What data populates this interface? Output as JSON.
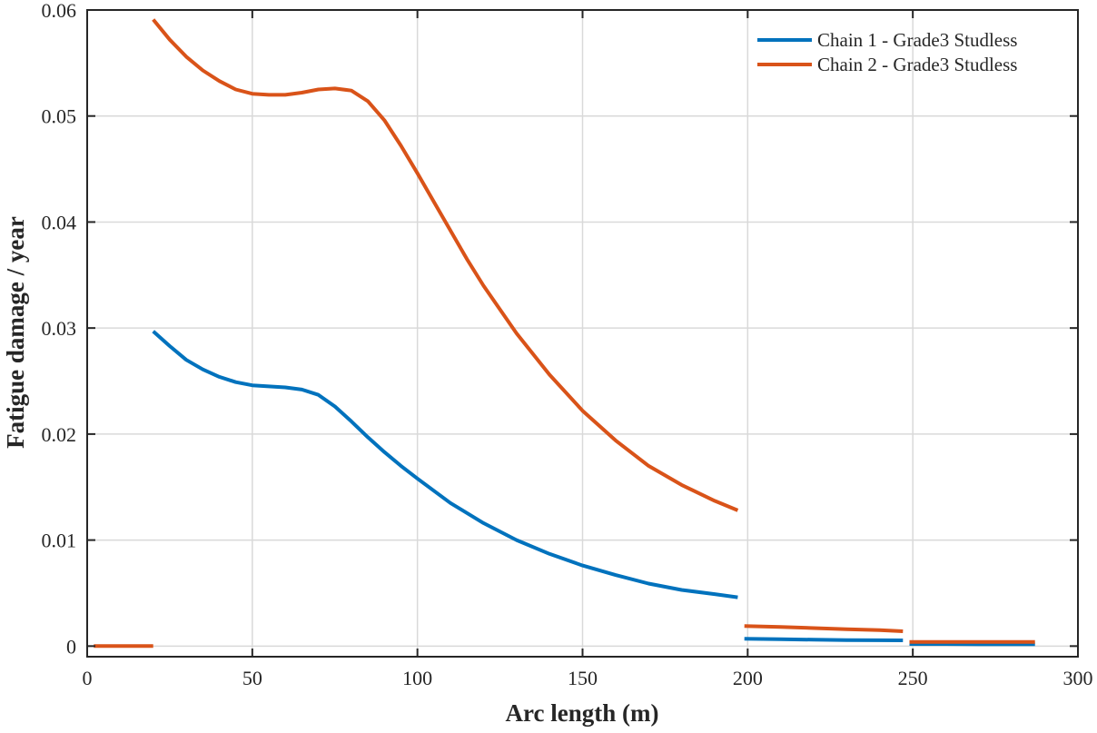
{
  "chart_data": {
    "type": "line",
    "title": "",
    "xlabel": "Arc length (m)",
    "ylabel": "Fatigue damage / year",
    "xlim": [
      0,
      300
    ],
    "ylim": [
      -0.001,
      0.06
    ],
    "grid": true,
    "legend_position": "top-right",
    "x_ticks": [
      0,
      50,
      100,
      150,
      200,
      250,
      300
    ],
    "x_tick_labels": [
      "0",
      "50",
      "100",
      "150",
      "200",
      "250",
      "300"
    ],
    "y_ticks": [
      0,
      0.01,
      0.02,
      0.03,
      0.04,
      0.05,
      0.06
    ],
    "y_tick_labels": [
      "0",
      "0.01",
      "0.02",
      "0.03",
      "0.04",
      "0.05",
      "0.06"
    ],
    "series": [
      {
        "name": "Chain 1 - Grade3 Studless",
        "color": "#0072BD",
        "segments": [
          [
            [
              20,
              0.0297
            ],
            [
              25,
              0.0283
            ],
            [
              30,
              0.027
            ],
            [
              35,
              0.0261
            ],
            [
              40,
              0.0254
            ],
            [
              45,
              0.0249
            ],
            [
              50,
              0.0246
            ],
            [
              55,
              0.0245
            ],
            [
              60,
              0.0244
            ],
            [
              65,
              0.0242
            ],
            [
              70,
              0.0237
            ],
            [
              75,
              0.0226
            ],
            [
              80,
              0.0212
            ],
            [
              85,
              0.0197
            ],
            [
              90,
              0.0183
            ],
            [
              95,
              0.017
            ],
            [
              100,
              0.0158
            ],
            [
              110,
              0.0135
            ],
            [
              120,
              0.0116
            ],
            [
              130,
              0.01
            ],
            [
              140,
              0.0087
            ],
            [
              150,
              0.0076
            ],
            [
              160,
              0.0067
            ],
            [
              170,
              0.0059
            ],
            [
              180,
              0.0053
            ],
            [
              190,
              0.0049
            ],
            [
              197,
              0.0046
            ]
          ],
          [
            [
              199,
              0.0007
            ],
            [
              210,
              0.00065
            ],
            [
              220,
              0.0006
            ],
            [
              230,
              0.00057
            ],
            [
              240,
              0.00055
            ],
            [
              247,
              0.00054
            ]
          ],
          [
            [
              249,
              0.0002
            ],
            [
              260,
              0.0002
            ],
            [
              270,
              0.00018
            ],
            [
              280,
              0.00017
            ],
            [
              287,
              0.00017
            ]
          ]
        ]
      },
      {
        "name": "Chain 2 - Grade3 Studless",
        "color": "#D95319",
        "segments": [
          [
            [
              2,
              0.0
            ],
            [
              20,
              0.0
            ]
          ],
          [
            [
              20,
              0.0591
            ],
            [
              25,
              0.0572
            ],
            [
              30,
              0.0556
            ],
            [
              35,
              0.0543
            ],
            [
              40,
              0.0533
            ],
            [
              45,
              0.0525
            ],
            [
              50,
              0.0521
            ],
            [
              55,
              0.052
            ],
            [
              60,
              0.052
            ],
            [
              65,
              0.0522
            ],
            [
              70,
              0.0525
            ],
            [
              75,
              0.0526
            ],
            [
              80,
              0.0524
            ],
            [
              85,
              0.0514
            ],
            [
              90,
              0.0496
            ],
            [
              95,
              0.0472
            ],
            [
              100,
              0.0446
            ],
            [
              105,
              0.0419
            ],
            [
              110,
              0.0392
            ],
            [
              115,
              0.0365
            ],
            [
              120,
              0.034
            ],
            [
              130,
              0.0295
            ],
            [
              140,
              0.0256
            ],
            [
              150,
              0.0222
            ],
            [
              160,
              0.0194
            ],
            [
              170,
              0.017
            ],
            [
              180,
              0.0152
            ],
            [
              190,
              0.0137
            ],
            [
              197,
              0.0128
            ]
          ],
          [
            [
              199,
              0.0019
            ],
            [
              210,
              0.0018
            ],
            [
              220,
              0.0017
            ],
            [
              230,
              0.0016
            ],
            [
              240,
              0.0015
            ],
            [
              247,
              0.0014
            ]
          ],
          [
            [
              249,
              0.0004
            ],
            [
              260,
              0.0004
            ],
            [
              270,
              0.0004
            ],
            [
              280,
              0.0004
            ],
            [
              287,
              0.0004
            ]
          ]
        ]
      }
    ]
  }
}
